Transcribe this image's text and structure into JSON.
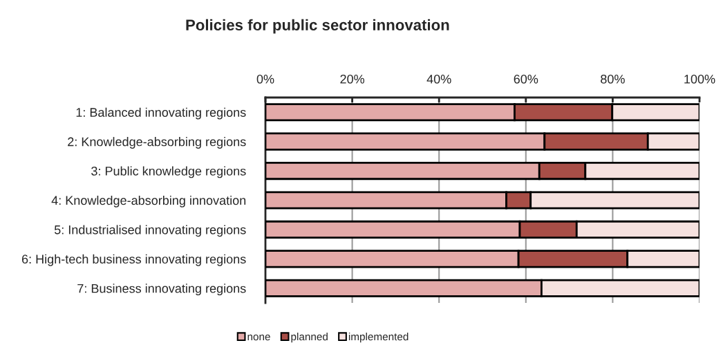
{
  "chart_data": {
    "type": "bar",
    "title": "Policies for public sector innovation",
    "orientation": "horizontal",
    "stacked": true,
    "categories": [
      "1: Balanced innovating regions",
      "2: Knowledge-absorbing regions",
      "3: Public knowledge regions",
      "4: Knowledge-absorbing innovation",
      "5: Industrialised innovating regions",
      "6: High-tech business innovating regions",
      "7: Business innovating regions"
    ],
    "series": [
      {
        "name": "none",
        "color": "#e3a9a8",
        "values": [
          57.4,
          64.3,
          63.1,
          55.5,
          58.6,
          58.3,
          63.6
        ]
      },
      {
        "name": "planned",
        "color": "#a84e47",
        "values": [
          22.5,
          23.8,
          10.6,
          5.6,
          13.1,
          25.1,
          0
        ]
      },
      {
        "name": "implemented",
        "color": "#f5e1df",
        "values": [
          20.1,
          11.9,
          26.3,
          38.9,
          28.3,
          16.6,
          36.4
        ]
      }
    ],
    "xlim": [
      0,
      100
    ],
    "xticks": [
      {
        "value": 0,
        "label": "0%"
      },
      {
        "value": 20,
        "label": "20%"
      },
      {
        "value": 40,
        "label": "40%"
      },
      {
        "value": 60,
        "label": "60%"
      },
      {
        "value": 80,
        "label": "80%"
      },
      {
        "value": 100,
        "label": "100%"
      }
    ],
    "grid": "x",
    "legend": "bottom"
  }
}
